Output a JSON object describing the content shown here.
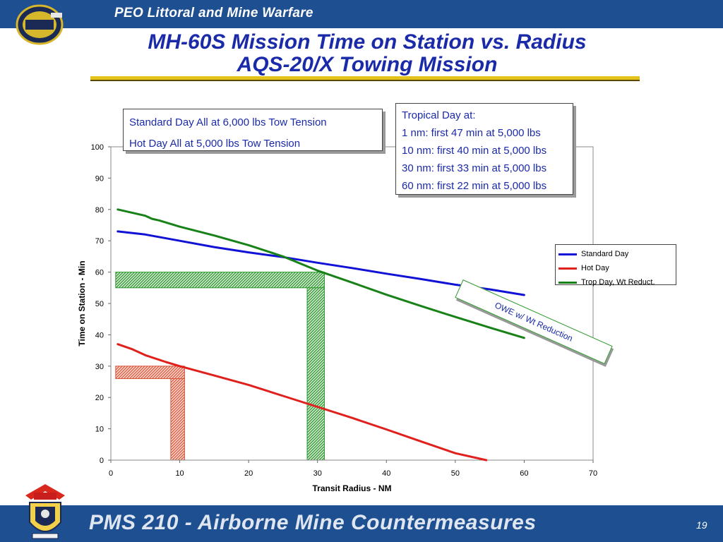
{
  "header": {
    "org": "PEO Littoral and Mine Warfare"
  },
  "title": {
    "line1": "MH-60S Mission Time on Station vs. Radius",
    "line2": "AQS-20/X Towing Mission"
  },
  "footer": {
    "program": "PMS 210 - Airborne Mine Countermeasures",
    "page": "19"
  },
  "notes": {
    "left": [
      "Standard Day All at 6,000 lbs Tow Tension",
      "Hot Day All at 5,000 lbs Tow Tension"
    ],
    "right": [
      "Tropical Day at:",
      "1 nm: first 47 min at 5,000 lbs",
      "10 nm: first 40 min at 5,000 lbs",
      "30 nm: first 33 min at 5,000 lbs",
      "60 nm: first 22 min at 5,000 lbs"
    ],
    "owe": "OWE w/ Wt Reduction"
  },
  "chart_data": {
    "type": "line",
    "xlabel": "Transit Radius - NM",
    "ylabel": "Time on Station - Min",
    "xlim": [
      0,
      70
    ],
    "ylim": [
      0,
      100
    ],
    "xticks": [
      0,
      10,
      20,
      30,
      40,
      50,
      60,
      70
    ],
    "yticks": [
      0,
      10,
      20,
      30,
      40,
      50,
      60,
      70,
      80,
      90,
      100
    ],
    "grid": false,
    "legend_position": "right",
    "series": [
      {
        "name": "Standard Day",
        "color": "#1212d6",
        "x": [
          1,
          5,
          10,
          15,
          20,
          25,
          30,
          35,
          40,
          45,
          50,
          55,
          60
        ],
        "y": [
          73,
          72,
          70,
          68,
          66.3,
          64.8,
          63,
          61.3,
          59.5,
          57.8,
          56,
          54.5,
          52.7
        ]
      },
      {
        "name": "Hot Day",
        "color": "#e0201c",
        "x": [
          1,
          3,
          5,
          8,
          10,
          15,
          20,
          25,
          30,
          35,
          40,
          45,
          50,
          54.5
        ],
        "y": [
          37,
          35.5,
          33.5,
          31.3,
          30,
          27,
          24,
          20.5,
          17,
          13.5,
          9.8,
          6,
          2.2,
          0
        ]
      },
      {
        "name": "Trop Day, Wt Reduct.",
        "color": "#188218",
        "x": [
          1,
          5,
          6,
          7,
          10,
          15,
          20,
          25,
          30,
          35,
          40,
          45,
          50,
          55,
          60
        ],
        "y": [
          80,
          78,
          77,
          76.5,
          74.5,
          71.7,
          68.6,
          65,
          60.5,
          56.7,
          52.8,
          49.2,
          45.7,
          42.3,
          39
        ]
      }
    ],
    "hatched_regions": [
      {
        "color": "#2a9a2a",
        "x_range": [
          0.7,
          31
        ],
        "y_range": [
          55,
          60
        ]
      },
      {
        "color": "#2a9a2a",
        "x_range": [
          28.5,
          31
        ],
        "y_range": [
          0,
          55
        ]
      },
      {
        "color": "#d8533a",
        "x_range": [
          0.7,
          10.7
        ],
        "y_range": [
          26,
          30
        ]
      },
      {
        "color": "#d8533a",
        "x_range": [
          8.7,
          10.7
        ],
        "y_range": [
          0,
          26
        ]
      }
    ]
  }
}
